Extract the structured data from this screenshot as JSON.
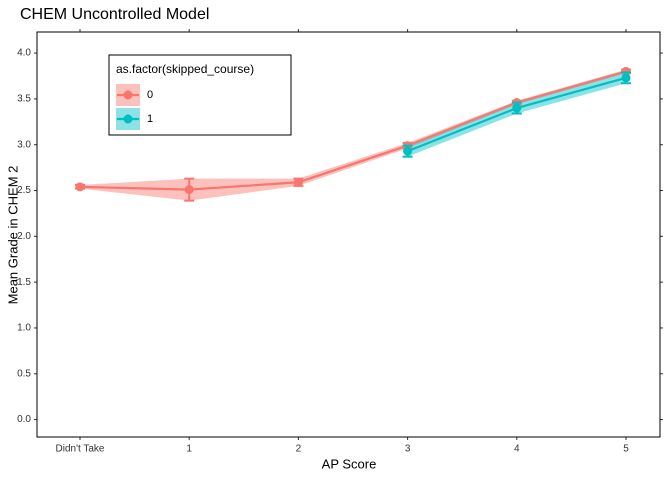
{
  "chart_data": {
    "type": "line",
    "title": "CHEM Uncontrolled Model",
    "x_label": "AP Score",
    "y_label": "Mean Grade in CHEM 2",
    "legend_title": "as.factor(skipped_course)",
    "legend_position": "top-left",
    "categories": [
      "Didn't Take",
      "1",
      "2",
      "3",
      "4",
      "5"
    ],
    "series": [
      {
        "name": "0",
        "color": "#F8766D",
        "values": [
          2.54,
          2.51,
          2.59,
          2.99,
          3.46,
          3.8
        ],
        "errors": [
          0.02,
          0.12,
          0.04,
          0.03,
          0.02,
          0.02
        ]
      },
      {
        "name": "1",
        "color": "#00BFC4",
        "values": [
          null,
          null,
          null,
          2.93,
          3.4,
          3.73
        ],
        "errors": [
          null,
          null,
          null,
          0.06,
          0.06,
          0.06
        ]
      }
    ],
    "ylim": [
      -0.19,
      4.23
    ],
    "yticks": [
      {
        "value": 0,
        "label": "0.0"
      },
      0.5,
      {
        "value": 1,
        "label": "1.0"
      },
      1.5,
      {
        "value": 2,
        "label": "2.0"
      },
      2.5,
      {
        "value": 3,
        "label": "3.0"
      },
      3.5,
      {
        "value": 4,
        "label": "4.0"
      }
    ],
    "grid": false
  }
}
